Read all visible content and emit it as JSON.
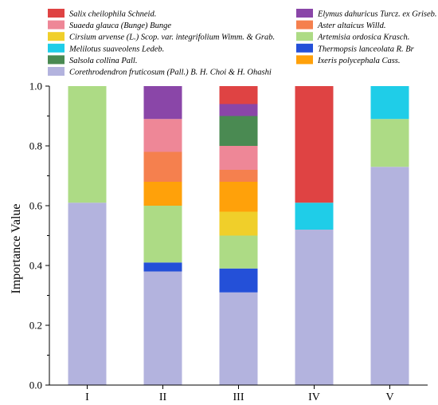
{
  "chart_data": {
    "type": "bar",
    "stacked": true,
    "categories": [
      "I",
      "II",
      "III",
      "IV",
      "V"
    ],
    "ylabel": "Importance Value",
    "xlabel": "",
    "ylim": [
      0,
      1.0
    ],
    "yticks": [
      "0.0",
      "0.2",
      "0.4",
      "0.6",
      "0.8",
      "1.0"
    ],
    "legend_position": "top",
    "series": [
      {
        "name": "Corethrodendron fruticosum (Pall.) B. H. Choi & H. Ohashi",
        "color": "#b3b3de",
        "values": [
          0.61,
          0.38,
          0.31,
          0.52,
          0.73
        ]
      },
      {
        "name": "Thermopsis lanceolata R. Br",
        "color": "#2450d8",
        "values": [
          0,
          0.03,
          0.08,
          0,
          0
        ]
      },
      {
        "name": "Artemisia ordosica Krasch.",
        "color": "#addb85",
        "values": [
          0.39,
          0.19,
          0.11,
          0,
          0.16
        ]
      },
      {
        "name": "Cirsium arvense (L.) Scop. var. integrifolium Wimm. & Grab.",
        "color": "#f0cf2a",
        "values": [
          0,
          0,
          0.08,
          0,
          0
        ]
      },
      {
        "name": "Ixeris polycephala Cass.",
        "color": "#ffa10a",
        "values": [
          0,
          0.08,
          0.1,
          0,
          0
        ]
      },
      {
        "name": "Aster altaicus Willd.",
        "color": "#f5804e",
        "values": [
          0,
          0.1,
          0.04,
          0,
          0
        ]
      },
      {
        "name": "Suaeda glauca (Bunge) Bunge",
        "color": "#ee8797",
        "values": [
          0,
          0.11,
          0.08,
          0,
          0
        ]
      },
      {
        "name": "Salsola collina Pall.",
        "color": "#4a8a52",
        "values": [
          0,
          0,
          0.1,
          0,
          0
        ]
      },
      {
        "name": "Melilotus suaveolens Ledeb.",
        "color": "#1fcde8",
        "values": [
          0,
          0,
          0,
          0.09,
          0.11
        ]
      },
      {
        "name": "Elymus dahuricus Turcz. ex Griseb.",
        "color": "#8a46a8",
        "values": [
          0,
          0.11,
          0.04,
          0,
          0
        ]
      },
      {
        "name": "Salix cheilophila Schneid.",
        "color": "#df4343",
        "values": [
          0,
          0,
          0.06,
          0.39,
          0
        ]
      }
    ],
    "legend_order": [
      "Salix cheilophila Schneid.",
      "Elymus dahuricus Turcz. ex Griseb.",
      "Suaeda glauca (Bunge) Bunge",
      "Aster altaicus Willd.",
      "Cirsium arvense (L.) Scop. var. integrifolium Wimm. & Grab.",
      "Artemisia ordosica Krasch.",
      "Melilotus suaveolens Ledeb.",
      "Thermopsis lanceolata R. Br",
      "Salsola collina Pall.",
      "Ixeris polycephala Cass.",
      "Corethrodendron fruticosum (Pall.) B. H. Choi & H. Ohashi"
    ]
  }
}
